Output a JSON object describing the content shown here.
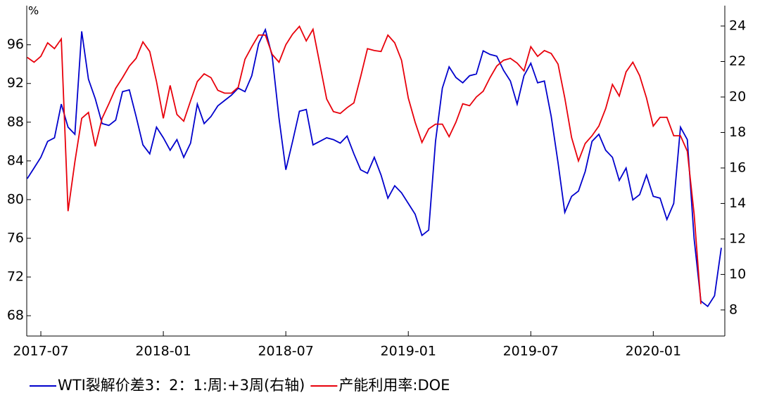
{
  "chart_data": {
    "type": "line",
    "y_label": "%",
    "categories": [
      null,
      null,
      "2017-07",
      null,
      null,
      null,
      null,
      null,
      null,
      null,
      null,
      null,
      null,
      null,
      null,
      null,
      null,
      null,
      null,
      null,
      "2018-01",
      null,
      null,
      null,
      null,
      null,
      null,
      null,
      null,
      null,
      null,
      null,
      null,
      null,
      null,
      null,
      null,
      null,
      "2018-07",
      null,
      null,
      null,
      null,
      null,
      null,
      null,
      null,
      null,
      null,
      null,
      null,
      null,
      null,
      null,
      null,
      null,
      "2019-01",
      null,
      null,
      null,
      null,
      null,
      null,
      null,
      null,
      null,
      null,
      null,
      null,
      null,
      null,
      null,
      null,
      null,
      "2019-07",
      null,
      null,
      null,
      null,
      null,
      null,
      null,
      null,
      null,
      null,
      null,
      null,
      null,
      null,
      null,
      null,
      null,
      "2020-01",
      null,
      null,
      null,
      null,
      null,
      null,
      null,
      null,
      null,
      null
    ],
    "series": [
      {
        "name": "WTI裂解价差3：2：1:周:+3周(右轴)",
        "color": "#0000cc",
        "axis": "y2",
        "values": [
          15.4,
          16.0,
          16.6,
          17.5,
          17.7,
          19.6,
          18.3,
          17.9,
          23.7,
          21.0,
          19.9,
          18.5,
          18.4,
          18.7,
          20.3,
          20.4,
          18.9,
          17.3,
          16.8,
          18.3,
          17.7,
          17.0,
          17.6,
          16.6,
          17.4,
          19.6,
          18.5,
          18.9,
          19.5,
          19.8,
          20.1,
          20.5,
          20.3,
          21.2,
          23.0,
          23.8,
          22.3,
          18.8,
          15.9,
          17.5,
          19.2,
          19.3,
          17.3,
          17.5,
          17.7,
          17.6,
          17.4,
          17.8,
          16.8,
          15.9,
          15.7,
          16.6,
          15.6,
          14.3,
          15.0,
          14.6,
          14.0,
          13.4,
          12.2,
          12.5,
          17.5,
          20.5,
          21.7,
          21.1,
          20.8,
          21.2,
          21.3,
          22.6,
          22.4,
          22.3,
          21.5,
          20.9,
          19.6,
          21.2,
          21.9,
          20.8,
          20.9,
          18.9,
          16.3,
          13.5,
          14.4,
          14.7,
          15.8,
          17.5,
          17.9,
          17.0,
          16.6,
          15.3,
          16.0,
          14.2,
          14.5,
          15.6,
          14.4,
          14.3,
          13.1,
          14.0,
          18.3,
          17.6,
          12.0,
          8.5,
          8.2,
          8.8,
          11.5
        ]
      },
      {
        "name": "产能利用率:DOE",
        "color": "#e8000b",
        "values": [
          94.7,
          94.2,
          94.8,
          96.2,
          95.6,
          96.6,
          78.8,
          83.9,
          88.4,
          89.0,
          85.5,
          88.4,
          89.9,
          91.5,
          92.6,
          93.8,
          94.6,
          96.3,
          95.3,
          92.2,
          88.4,
          91.8,
          88.8,
          88.1,
          90.2,
          92.2,
          93.0,
          92.6,
          91.3,
          91.0,
          91.0,
          91.6,
          94.5,
          95.8,
          97.0,
          97.0,
          95.0,
          94.2,
          96.0,
          97.1,
          97.9,
          96.4,
          97.6,
          94.0,
          90.4,
          89.1,
          88.9,
          89.5,
          90.0,
          92.7,
          95.6,
          95.4,
          95.3,
          97.0,
          96.2,
          94.4,
          90.5,
          88.0,
          85.9,
          87.3,
          87.8,
          87.8,
          86.5,
          88.0,
          89.9,
          89.7,
          90.6,
          91.2,
          92.6,
          93.8,
          94.4,
          94.6,
          94.1,
          93.3,
          95.8,
          94.8,
          95.4,
          95.1,
          94.0,
          90.5,
          86.4,
          84.0,
          85.8,
          86.6,
          87.6,
          89.4,
          91.9,
          90.7,
          93.2,
          94.2,
          92.8,
          90.5,
          87.6,
          88.5,
          88.5,
          86.6,
          86.6,
          85.0,
          78.5,
          69.2,
          null,
          null,
          null
        ]
      }
    ],
    "ylim": [
      65.9,
      99.9
    ],
    "yticks": [
      68,
      72,
      76,
      80,
      84,
      88,
      92,
      96
    ],
    "y2lim": [
      6.53,
      25.07
    ],
    "y2ticks": [
      8,
      10,
      12,
      14,
      16,
      18,
      20,
      22,
      24
    ],
    "legend": "bottom"
  }
}
